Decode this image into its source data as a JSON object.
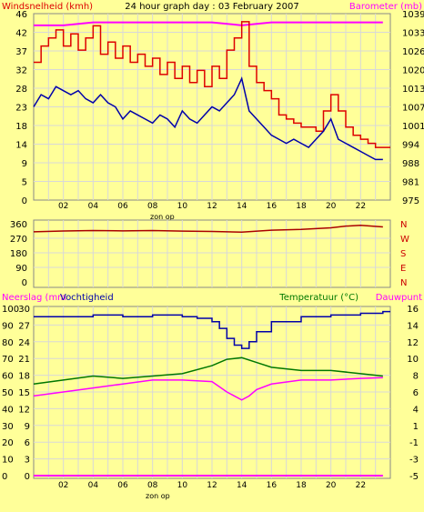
{
  "title": "24 hour graph day : 03 February 2007",
  "colors": {
    "background": "#ffff99",
    "wind": "#dd0000",
    "barometer": "#ff00ff",
    "windavg": "#0000aa",
    "humidity": "#0000aa",
    "temperature": "#007700",
    "dewpoint": "#ff00ff",
    "rain": "#ff00ff",
    "direction": "#aa0000",
    "grid": "#d8d8d8"
  },
  "chart_data": [
    {
      "type": "line",
      "title": "24 hour graph day : 03 February 2007",
      "ylabel_left": "Windsnelheid (kmh)",
      "ylabel_right": "Barometer (mb)",
      "xlabel": "zon op",
      "x_ticks": [
        "02",
        "04",
        "06",
        "08",
        "10",
        "12",
        "14",
        "16",
        "18",
        "20",
        "22"
      ],
      "y_left_ticks": [
        "46",
        "42",
        "37",
        "32",
        "28",
        "23",
        "18",
        "14",
        "9",
        "5",
        "0"
      ],
      "y_right_ticks": [
        "1039",
        "1033",
        "1026",
        "1020",
        "1013",
        "1007",
        "1001",
        "994",
        "988",
        "981",
        "975"
      ],
      "ylim_left": [
        0,
        46
      ],
      "ylim_right": [
        975,
        1039
      ],
      "series": [
        {
          "name": "wind",
          "x": [
            0,
            0.5,
            1,
            1.5,
            2,
            2.5,
            3,
            3.5,
            4,
            4.5,
            5,
            5.5,
            6,
            6.5,
            7,
            7.5,
            8,
            8.5,
            9,
            9.5,
            10,
            10.5,
            11,
            11.5,
            12,
            12.5,
            13,
            13.5,
            14,
            14.5,
            15,
            15.5,
            16,
            16.5,
            17,
            17.5,
            18,
            18.5,
            19,
            19.5,
            20,
            20.5,
            21,
            21.5,
            22,
            22.5,
            23,
            23.5
          ],
          "values": [
            34,
            38,
            40,
            42,
            38,
            41,
            37,
            40,
            43,
            36,
            39,
            35,
            38,
            34,
            36,
            33,
            35,
            31,
            34,
            30,
            33,
            29,
            32,
            28,
            33,
            30,
            37,
            40,
            44,
            33,
            29,
            27,
            25,
            21,
            20,
            19,
            18,
            18,
            17,
            22,
            26,
            22,
            18,
            16,
            15,
            14,
            13,
            13
          ]
        },
        {
          "name": "windavg",
          "x": [
            0,
            0.5,
            1,
            1.5,
            2,
            2.5,
            3,
            3.5,
            4,
            4.5,
            5,
            5.5,
            6,
            6.5,
            7,
            7.5,
            8,
            8.5,
            9,
            9.5,
            10,
            10.5,
            11,
            11.5,
            12,
            12.5,
            13,
            13.5,
            14,
            14.5,
            15,
            15.5,
            16,
            16.5,
            17,
            17.5,
            18,
            18.5,
            19,
            19.5,
            20,
            20.5,
            21,
            21.5,
            22,
            22.5,
            23,
            23.5
          ],
          "values": [
            23,
            26,
            25,
            28,
            27,
            26,
            27,
            25,
            24,
            26,
            24,
            23,
            20,
            22,
            21,
            20,
            19,
            21,
            20,
            18,
            22,
            20,
            19,
            21,
            23,
            22,
            24,
            26,
            30,
            22,
            20,
            18,
            16,
            15,
            14,
            15,
            14,
            13,
            15,
            17,
            20,
            15,
            14,
            13,
            12,
            11,
            10,
            10
          ]
        },
        {
          "name": "barometer",
          "x": [
            0,
            2,
            4,
            6,
            8,
            10,
            12,
            14,
            16,
            18,
            20,
            22,
            23.5
          ],
          "values": [
            1035,
            1035,
            1036,
            1036,
            1036,
            1036,
            1036,
            1035,
            1036,
            1036,
            1036,
            1036,
            1036
          ]
        }
      ]
    },
    {
      "type": "line",
      "xlabel": "",
      "y_left_ticks": [
        "360",
        "270",
        "180",
        "90",
        "0"
      ],
      "y_right_ticks": [
        "N",
        "W",
        "S",
        "E",
        "N"
      ],
      "ylim_left": [
        0,
        360
      ],
      "series": [
        {
          "name": "direction",
          "x": [
            0,
            2,
            4,
            6,
            8,
            10,
            12,
            14,
            16,
            18,
            20,
            21,
            22,
            23.5
          ],
          "values": [
            310,
            315,
            318,
            316,
            318,
            314,
            312,
            308,
            320,
            325,
            335,
            345,
            350,
            340
          ]
        }
      ]
    },
    {
      "type": "line",
      "ylabel_left": "Neerslag (mm",
      "ylabel_left2": "Vochtigheid",
      "ylabel_right": "Temperatuur (°C)",
      "ylabel_right2": "Dauwpunt",
      "xlabel": "zon op",
      "x_ticks": [
        "02",
        "04",
        "06",
        "08",
        "10",
        "12",
        "14",
        "16",
        "18",
        "20",
        "22"
      ],
      "y_left_ticks": [
        "30",
        "27",
        "24",
        "21",
        "18",
        "15",
        "12",
        "9",
        "6",
        "3",
        "0"
      ],
      "y_left2_ticks": [
        "100",
        "90",
        "80",
        "70",
        "60",
        "50",
        "40",
        "30",
        "20",
        "10",
        "0"
      ],
      "y_right_ticks": [
        "16",
        "14",
        "12",
        "10",
        "8",
        "6",
        "4",
        "1",
        "-1",
        "-3",
        "-5"
      ],
      "ylim_left": [
        0,
        30
      ],
      "ylim_left2": [
        0,
        100
      ],
      "ylim_right": [
        -5,
        16
      ],
      "series": [
        {
          "name": "humidity",
          "x": [
            0,
            2,
            4,
            6,
            8,
            10,
            11,
            12,
            12.5,
            13,
            13.5,
            14,
            14.5,
            15,
            16,
            18,
            20,
            22,
            23.5
          ],
          "values": [
            95,
            95,
            96,
            95,
            96,
            95,
            94,
            92,
            88,
            82,
            78,
            76,
            80,
            86,
            92,
            95,
            96,
            97,
            98
          ]
        },
        {
          "name": "temperature",
          "x": [
            0,
            2,
            4,
            6,
            8,
            10,
            12,
            13,
            14,
            15,
            16,
            18,
            20,
            22,
            23.5
          ],
          "values": [
            6.5,
            7,
            7.5,
            7.2,
            7.5,
            7.8,
            8.8,
            9.6,
            9.8,
            9.2,
            8.6,
            8.2,
            8.2,
            7.8,
            7.5
          ]
        },
        {
          "name": "dewpoint",
          "x": [
            0,
            2,
            4,
            6,
            8,
            10,
            12,
            13,
            14,
            14.5,
            15,
            16,
            18,
            20,
            22,
            23.5
          ],
          "values": [
            5,
            5.5,
            6,
            6.5,
            7,
            7,
            6.8,
            5.5,
            4.5,
            5,
            5.8,
            6.5,
            7,
            7,
            7.2,
            7.3
          ]
        },
        {
          "name": "rain",
          "x": [
            0,
            23.5
          ],
          "values": [
            0,
            0
          ]
        }
      ]
    }
  ]
}
